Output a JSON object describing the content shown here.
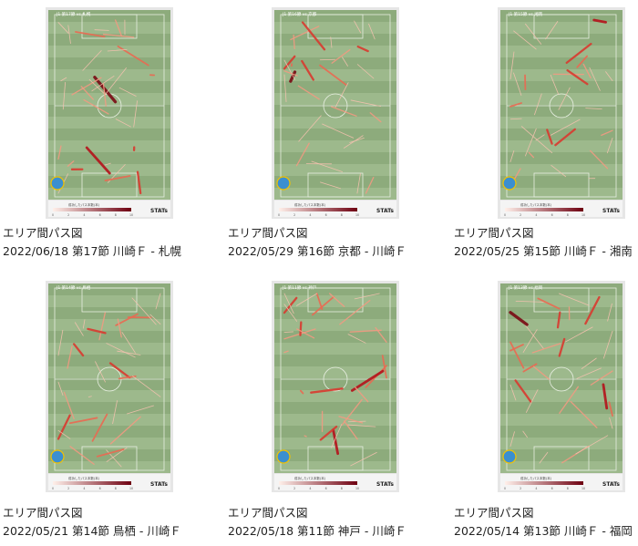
{
  "legend": {
    "title": "成功したパス本数(本)",
    "scale": [
      "0",
      "2",
      "4",
      "6",
      "8",
      "10"
    ],
    "brand": "STATs"
  },
  "cards": [
    {
      "heading": "J1 第17節 vs 札幌",
      "title": "エリア間パス図",
      "subtitle": "2022/06/18 第17節 川崎Ｆ - 札幌"
    },
    {
      "heading": "J1 第16節 vs 京都",
      "title": "エリア間パス図",
      "subtitle": "2022/05/29 第16節 京都 - 川崎Ｆ"
    },
    {
      "heading": "J1 第15節 vs 湘南",
      "title": "エリア間パス図",
      "subtitle": "2022/05/25 第15節 川崎Ｆ - 湘南"
    },
    {
      "heading": "J1 第14節 vs 鳥栖",
      "title": "エリア間パス図",
      "subtitle": "2022/05/21 第14節 鳥栖 - 川崎Ｆ"
    },
    {
      "heading": "J1 第11節 vs 神戸",
      "title": "エリア間パス図",
      "subtitle": "2022/05/18 第11節 神戸 - 川崎Ｆ"
    },
    {
      "heading": "J1 第13節 vs 福岡",
      "title": "エリア間パス図",
      "subtitle": "2022/05/14 第13節 川崎Ｆ - 福岡"
    }
  ]
}
